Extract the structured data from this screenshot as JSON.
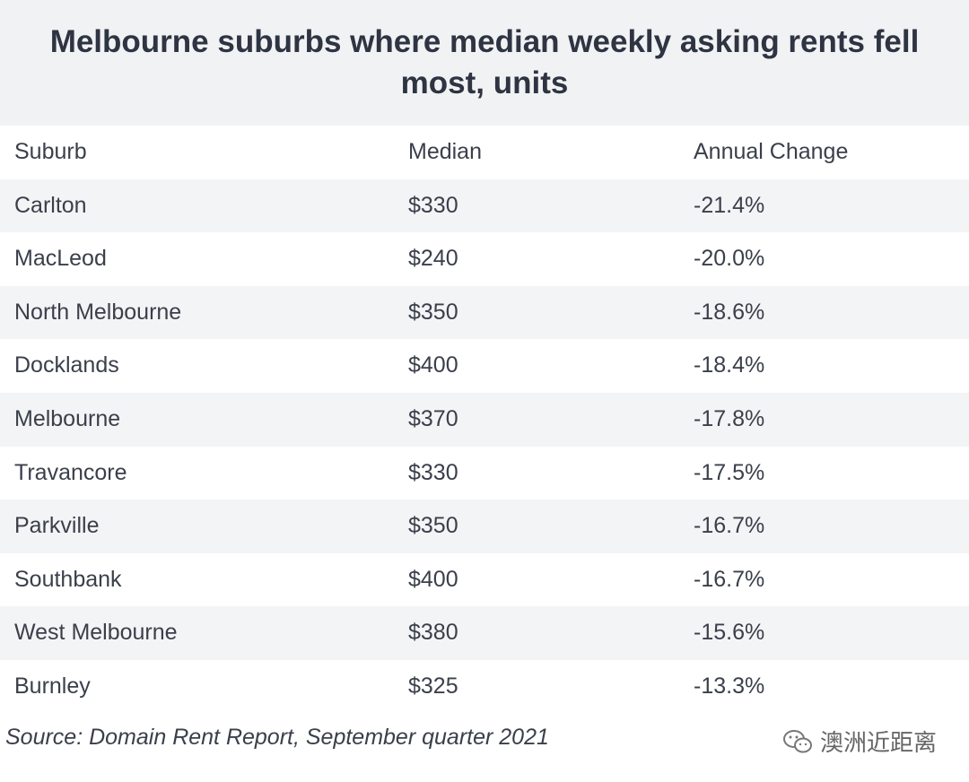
{
  "header": {
    "title": "Melbourne suburbs where median weekly asking rents fell most, units"
  },
  "table": {
    "columns": [
      "Suburb",
      "Median",
      "Annual Change"
    ],
    "rows": [
      [
        "Carlton",
        "$330",
        "-21.4%"
      ],
      [
        "MacLeod",
        "$240",
        "-20.0%"
      ],
      [
        "North Melbourne",
        "$350",
        "-18.6%"
      ],
      [
        "Docklands",
        "$400",
        "-18.4%"
      ],
      [
        "Melbourne",
        "$370",
        "-17.8%"
      ],
      [
        "Travancore",
        "$330",
        "-17.5%"
      ],
      [
        "Parkville",
        "$350",
        "-16.7%"
      ],
      [
        "Southbank",
        "$400",
        "-16.7%"
      ],
      [
        "West Melbourne",
        "$380",
        "-15.6%"
      ],
      [
        "Burnley",
        "$325",
        "-13.3%"
      ]
    ]
  },
  "source": "Source: Domain Rent Report, September quarter 2021",
  "watermark": "澳洲近距离"
}
